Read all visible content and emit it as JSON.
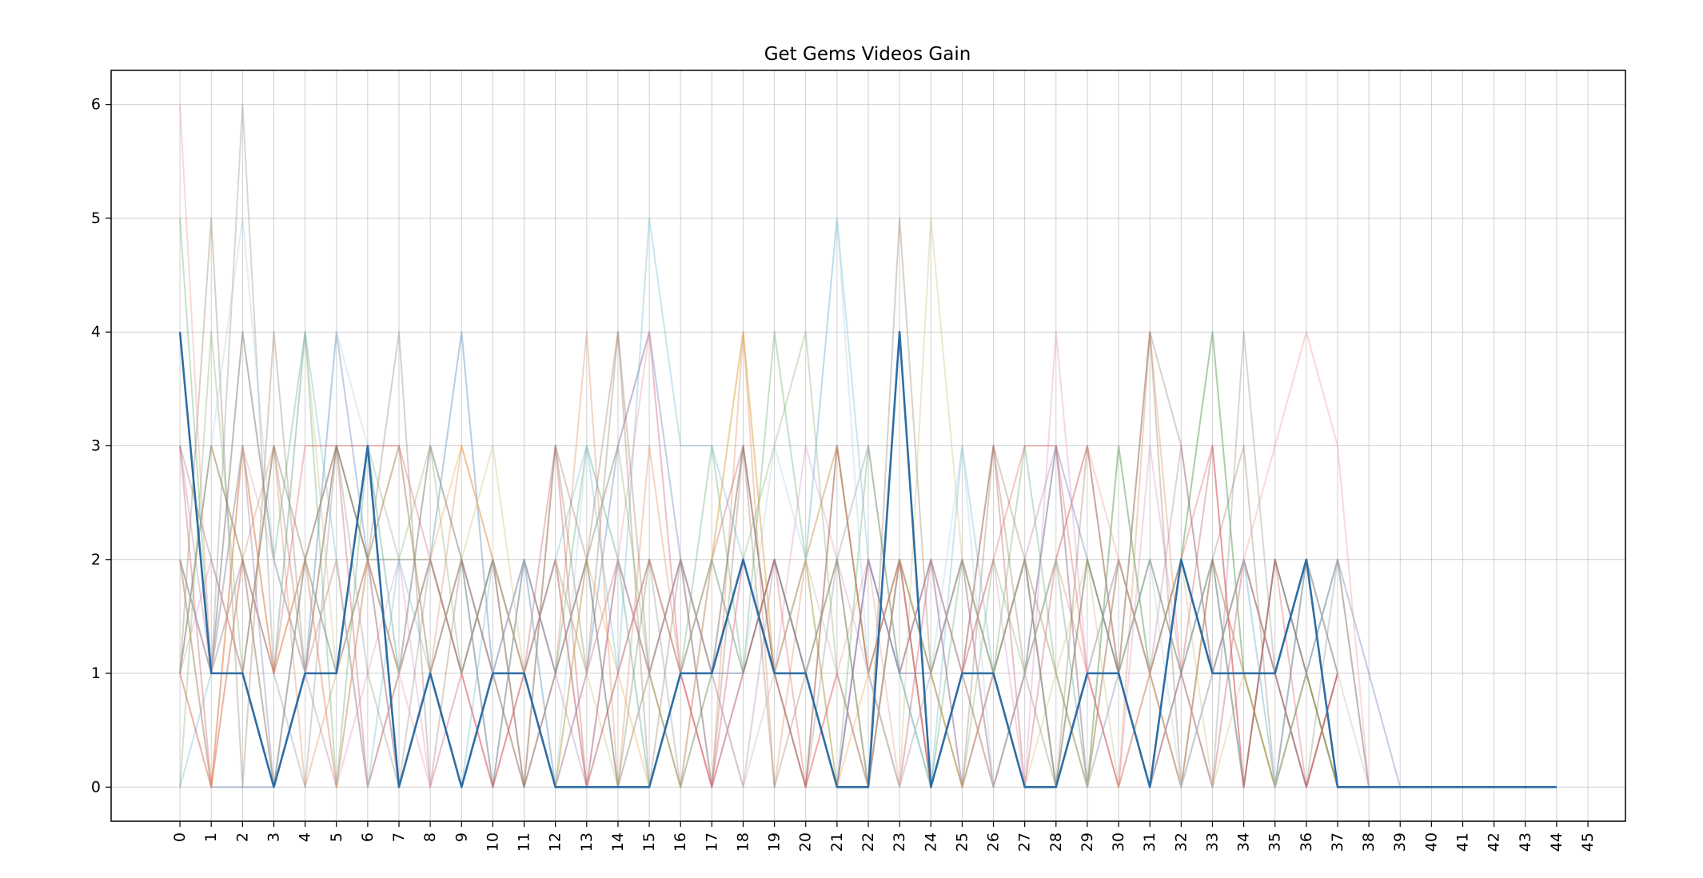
{
  "chart_data": {
    "type": "line",
    "title": "Get Gems Videos Gain",
    "xlabel": "",
    "ylabel": "",
    "x_ticks": [
      "0",
      "1",
      "2",
      "3",
      "4",
      "5",
      "6",
      "7",
      "8",
      "9",
      "10",
      "11",
      "12",
      "13",
      "14",
      "15",
      "16",
      "17",
      "18",
      "19",
      "20",
      "21",
      "22",
      "23",
      "24",
      "25",
      "26",
      "27",
      "28",
      "29",
      "30",
      "31",
      "32",
      "33",
      "34",
      "35",
      "36",
      "37",
      "38",
      "39",
      "40",
      "41",
      "42",
      "43",
      "44",
      "45"
    ],
    "y_ticks": [
      "0",
      "1",
      "2",
      "3",
      "4",
      "5",
      "6"
    ],
    "xlim": [
      -2.2,
      46.2
    ],
    "ylim": [
      -0.3,
      6.3
    ],
    "grid": true,
    "series_alpha": 0.35,
    "highlight_alpha": 1.0,
    "series": [
      {
        "color": "#2e6da4",
        "highlight": true,
        "values": [
          4,
          1,
          1,
          0,
          1,
          1,
          3,
          0,
          1,
          0,
          1,
          1,
          0,
          0,
          0,
          0,
          1,
          1,
          2,
          1,
          1,
          0,
          0,
          4,
          0,
          1,
          1,
          0,
          0,
          1,
          1,
          0,
          2,
          1,
          1,
          1,
          2,
          0,
          0,
          0,
          0,
          0,
          0,
          0,
          0
        ]
      },
      {
        "color": "#4c72b0",
        "values": [
          2,
          0,
          0,
          0,
          1,
          4,
          2,
          1,
          2,
          4,
          1,
          2,
          0,
          1,
          3,
          4,
          2,
          1,
          1,
          2,
          1,
          0,
          2,
          1,
          1,
          2,
          0,
          1,
          3,
          2,
          1,
          0,
          1,
          2,
          0,
          2,
          1,
          2,
          1,
          0
        ]
      },
      {
        "color": "#dd8452",
        "values": [
          1,
          3,
          2,
          3,
          0,
          1,
          2,
          0,
          1,
          3,
          2,
          0,
          1,
          4,
          0,
          3,
          1,
          0,
          4,
          0,
          2,
          3,
          1,
          0,
          2,
          1,
          0,
          1,
          2,
          1,
          0,
          4,
          1,
          0,
          2,
          1,
          0,
          1
        ]
      },
      {
        "color": "#55a868",
        "values": [
          5,
          1,
          4,
          2,
          4,
          0,
          3,
          1,
          3,
          2,
          0,
          2,
          1,
          3,
          2,
          0,
          1,
          3,
          1,
          4,
          2,
          0,
          3,
          1,
          0,
          2,
          1,
          3,
          1,
          0,
          3,
          1,
          2,
          4,
          1,
          0,
          2,
          1
        ]
      },
      {
        "color": "#c44e52",
        "values": [
          3,
          0,
          3,
          1,
          2,
          3,
          0,
          1,
          2,
          1,
          0,
          1,
          3,
          0,
          2,
          1,
          0,
          2,
          3,
          1,
          0,
          3,
          1,
          2,
          0,
          1,
          3,
          0,
          2,
          3,
          1,
          0,
          1,
          3,
          0,
          2,
          1,
          0
        ]
      },
      {
        "color": "#8172b3",
        "values": [
          2,
          1,
          3,
          0,
          2,
          1,
          2,
          0,
          1,
          2,
          0,
          2,
          1,
          2,
          0,
          1,
          2,
          0,
          1,
          2,
          1,
          0,
          2,
          1,
          2,
          0,
          1,
          2,
          0,
          1,
          2,
          1,
          0,
          2,
          1,
          0,
          2,
          1
        ]
      },
      {
        "color": "#937860",
        "values": [
          1,
          5,
          0,
          4,
          1,
          3,
          2,
          4,
          0,
          2,
          1,
          0,
          3,
          1,
          4,
          0,
          2,
          1,
          3,
          0,
          1,
          2,
          0,
          5,
          1,
          0,
          3,
          1,
          0,
          2,
          1,
          4,
          0,
          2,
          3,
          0,
          1,
          2,
          0
        ]
      },
      {
        "color": "#da8bc3",
        "values": [
          1,
          2,
          1,
          3,
          2,
          0,
          1,
          2,
          0,
          1,
          2,
          0,
          1,
          2,
          3,
          4,
          1,
          0,
          2,
          1,
          3,
          2,
          1,
          0,
          2,
          1,
          2,
          0,
          4,
          1,
          0,
          3,
          1,
          0,
          2,
          1,
          0,
          1
        ]
      },
      {
        "color": "#8c8c8c",
        "values": [
          2,
          1,
          6,
          1,
          0,
          3,
          1,
          0,
          2,
          1,
          2,
          1,
          2,
          0,
          1,
          2,
          0,
          1,
          3,
          1,
          0,
          2,
          3,
          1,
          2,
          1,
          0,
          1,
          3,
          0,
          1,
          2,
          1,
          0,
          4,
          1,
          0,
          2,
          0
        ]
      },
      {
        "color": "#ccb974",
        "values": [
          1,
          0,
          2,
          1,
          4,
          1,
          2,
          3,
          1,
          2,
          3,
          1,
          2,
          1,
          0,
          1,
          0,
          2,
          4,
          1,
          2,
          3,
          1,
          0,
          5,
          2,
          1,
          0,
          1,
          2,
          0,
          1,
          2,
          0,
          1,
          0,
          1,
          0,
          0
        ]
      },
      {
        "color": "#64b5cd",
        "values": [
          0,
          1,
          2,
          1,
          4,
          2,
          0,
          2,
          1,
          0,
          2,
          1,
          2,
          3,
          1,
          5,
          3,
          3,
          2,
          1,
          2,
          5,
          2,
          1,
          0,
          3,
          1,
          2,
          1,
          0,
          2,
          1,
          0,
          1,
          2,
          0,
          1,
          0
        ]
      },
      {
        "color": "#f28e8e",
        "values": [
          6,
          1,
          2,
          0,
          1,
          2,
          0,
          1,
          0,
          1,
          2,
          1,
          0,
          1,
          2,
          4,
          1,
          0,
          2,
          1,
          0,
          1,
          2,
          0,
          1,
          2,
          0,
          1,
          2,
          3,
          2,
          1,
          0,
          1,
          2,
          3,
          4,
          3,
          0
        ]
      },
      {
        "color": "#7fb069",
        "values": [
          0,
          4,
          1,
          3,
          2,
          1,
          3,
          2,
          3,
          1,
          2,
          1,
          0,
          2,
          3,
          1,
          0,
          1,
          2,
          3,
          4,
          1,
          0,
          2,
          1,
          0,
          2,
          1,
          2,
          0,
          3,
          1,
          2,
          4,
          1,
          0,
          1,
          0
        ]
      },
      {
        "color": "#b07aa1",
        "values": [
          3,
          1,
          4,
          2,
          1,
          0,
          2,
          1,
          3,
          2,
          1,
          2,
          1,
          0,
          2,
          1,
          2,
          1,
          0,
          2,
          1,
          0,
          2,
          1,
          2,
          0,
          1,
          2,
          3,
          0,
          2,
          1,
          3,
          1,
          2,
          1,
          0,
          1
        ]
      },
      {
        "color": "#f1a340",
        "values": [
          2,
          0,
          3,
          1,
          2,
          0,
          2,
          1,
          2,
          3,
          2,
          1,
          0,
          2,
          1,
          0,
          1,
          2,
          4,
          1,
          2,
          0,
          1,
          2,
          1,
          0,
          1,
          2,
          1,
          0,
          2,
          1,
          0,
          2,
          1,
          0,
          1,
          0
        ]
      },
      {
        "color": "#9c755f",
        "values": [
          3,
          2,
          1,
          3,
          1,
          3,
          2,
          3,
          1,
          2,
          1,
          0,
          3,
          2,
          4,
          1,
          2,
          0,
          3,
          1,
          0,
          3,
          1,
          2,
          0,
          1,
          3,
          2,
          0,
          3,
          1,
          4,
          3,
          1,
          2,
          1,
          0,
          1
        ]
      },
      {
        "color": "#a6cee3",
        "values": [
          1,
          3,
          5,
          2,
          1,
          4,
          3,
          1,
          2,
          4,
          1,
          2,
          0,
          3,
          2,
          0,
          1,
          2,
          1,
          3,
          2,
          5,
          1,
          0,
          1,
          3,
          0,
          1,
          2,
          0,
          1,
          2,
          0,
          1,
          2,
          0,
          1,
          2
        ]
      },
      {
        "color": "#6a8759",
        "values": [
          1,
          3,
          2,
          0,
          2,
          3,
          2,
          2,
          2,
          1,
          2,
          0,
          1,
          2,
          0,
          2,
          1,
          2,
          1,
          2,
          1,
          2,
          0,
          2,
          1,
          2,
          1,
          2,
          0,
          2,
          1,
          2,
          1,
          2,
          0,
          2,
          1,
          0
        ]
      },
      {
        "color": "#e15759",
        "values": [
          1,
          0,
          2,
          1,
          3,
          3,
          3,
          3,
          2,
          1,
          0,
          1,
          2,
          0,
          1,
          2,
          1,
          0,
          1,
          2,
          0,
          1,
          0,
          2,
          0,
          1,
          2,
          3,
          3,
          1,
          0,
          1,
          2,
          3,
          0,
          2,
          0,
          1
        ]
      },
      {
        "color": "#bab0ac",
        "values": [
          2,
          1,
          3,
          2,
          1,
          2,
          0,
          1,
          2,
          1,
          2,
          1,
          2,
          1,
          2,
          1,
          2,
          1,
          0,
          1,
          2,
          1,
          0,
          2,
          1,
          2,
          1,
          2,
          0,
          1,
          2,
          1,
          2,
          1,
          2,
          1,
          2,
          1,
          0
        ]
      }
    ]
  }
}
